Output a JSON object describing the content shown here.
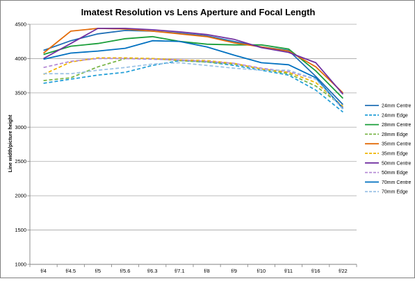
{
  "chart_data": {
    "type": "line",
    "title": "Imatest Resolution vs Lens Aperture and Focal Length",
    "xlabel": "",
    "ylabel": "Line width/picture height",
    "categories": [
      "f/4",
      "f/4.5",
      "f/5",
      "f/5.6",
      "f/6.3",
      "f/7.1",
      "f/8",
      "f/9",
      "f/10",
      "f/11",
      "f/16",
      "f/22"
    ],
    "ylim": [
      1000,
      4500
    ],
    "yticks": [
      "1000",
      "1500",
      "2000",
      "2500",
      "3000",
      "3500",
      "4000",
      "4500"
    ],
    "grid": "horizontal",
    "legend_position": "right",
    "series": [
      {
        "name": "24mm Centre",
        "color": "#1f6fb5",
        "dashed": false,
        "values": [
          4120,
          4260,
          4360,
          4410,
          4400,
          4370,
          4330,
          4250,
          4170,
          4120,
          3740,
          3330
        ]
      },
      {
        "name": "24mm Edge",
        "color": "#26a0d8",
        "dashed": true,
        "values": [
          3640,
          3700,
          3760,
          3800,
          3900,
          3970,
          3950,
          3900,
          3830,
          3760,
          3540,
          3220
        ]
      },
      {
        "name": "28mm Centre",
        "color": "#1a9e3a",
        "dashed": false,
        "values": [
          4060,
          4180,
          4220,
          4290,
          4320,
          4250,
          4210,
          4200,
          4200,
          4140,
          3820,
          3420
        ]
      },
      {
        "name": "28mm Edge",
        "color": "#7ab648",
        "dashed": true,
        "values": [
          3680,
          3720,
          3880,
          4000,
          4000,
          3970,
          3950,
          3920,
          3850,
          3780,
          3600,
          3300
        ]
      },
      {
        "name": "35mm Centre",
        "color": "#e36c0a",
        "dashed": false,
        "values": [
          4080,
          4400,
          4440,
          4430,
          4400,
          4360,
          4320,
          4230,
          4170,
          4110,
          3880,
          3500
        ]
      },
      {
        "name": "35mm Edge",
        "color": "#f0b400",
        "dashed": true,
        "values": [
          3770,
          3950,
          4010,
          4010,
          4000,
          3980,
          3970,
          3930,
          3850,
          3800,
          3650,
          3300
        ]
      },
      {
        "name": "50mm Centre",
        "color": "#7030a0",
        "dashed": false,
        "values": [
          4000,
          4220,
          4440,
          4440,
          4420,
          4390,
          4350,
          4280,
          4160,
          4090,
          3940,
          3480
        ]
      },
      {
        "name": "50mm Edge",
        "color": "#b48bd6",
        "dashed": true,
        "values": [
          3870,
          3960,
          4000,
          4000,
          3990,
          3980,
          3960,
          3930,
          3860,
          3810,
          3700,
          3280
        ]
      },
      {
        "name": "70mm Centre",
        "color": "#0070c0",
        "dashed": false,
        "values": [
          3990,
          4080,
          4110,
          4150,
          4260,
          4250,
          4170,
          4050,
          3940,
          3910,
          3720,
          3270
        ]
      },
      {
        "name": "70mm Edge",
        "color": "#9dc3e6",
        "dashed": true,
        "values": [
          3780,
          3780,
          3830,
          3870,
          3920,
          3940,
          3900,
          3860,
          3830,
          3830,
          3700,
          3260
        ]
      }
    ]
  }
}
